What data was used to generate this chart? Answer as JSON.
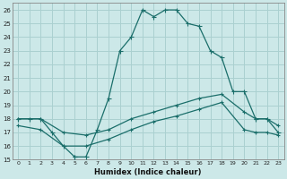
{
  "xlabel": "Humidex (Indice chaleur)",
  "bg_color": "#cce8e8",
  "grid_color": "#aad0d0",
  "line_color": "#1a6e6a",
  "xlim": [
    -0.5,
    23.5
  ],
  "ylim": [
    15,
    26.5
  ],
  "xticks": [
    0,
    1,
    2,
    3,
    4,
    5,
    6,
    7,
    8,
    9,
    10,
    11,
    12,
    13,
    14,
    15,
    16,
    17,
    18,
    19,
    20,
    21,
    22,
    23
  ],
  "yticks": [
    15,
    16,
    17,
    18,
    19,
    20,
    21,
    22,
    23,
    24,
    25,
    26
  ],
  "line1_x": [
    0,
    1,
    2,
    3,
    4,
    5,
    5,
    6,
    7,
    8,
    9,
    10,
    11,
    12,
    13,
    14,
    15,
    16,
    17,
    18,
    19,
    20,
    21,
    22,
    23
  ],
  "line1_y": [
    18,
    18,
    18,
    17,
    16,
    15.2,
    15.2,
    15.2,
    17.2,
    19.5,
    23,
    24,
    26,
    25.5,
    26,
    26,
    25,
    24.8,
    23,
    22.5,
    20,
    20,
    18,
    18,
    17
  ],
  "line2_x": [
    0,
    2,
    4,
    6,
    8,
    10,
    12,
    14,
    16,
    18,
    20,
    21,
    22,
    23
  ],
  "line2_y": [
    18,
    18,
    17,
    16.8,
    17.2,
    18,
    18.5,
    19,
    19.5,
    19.8,
    18.5,
    18,
    18,
    17.5
  ],
  "line3_x": [
    0,
    2,
    4,
    6,
    8,
    10,
    12,
    14,
    16,
    18,
    20,
    21,
    22,
    23
  ],
  "line3_y": [
    17.5,
    17.2,
    16,
    16,
    16.5,
    17.2,
    17.8,
    18.2,
    18.7,
    19.2,
    17.2,
    17,
    17,
    16.8
  ]
}
